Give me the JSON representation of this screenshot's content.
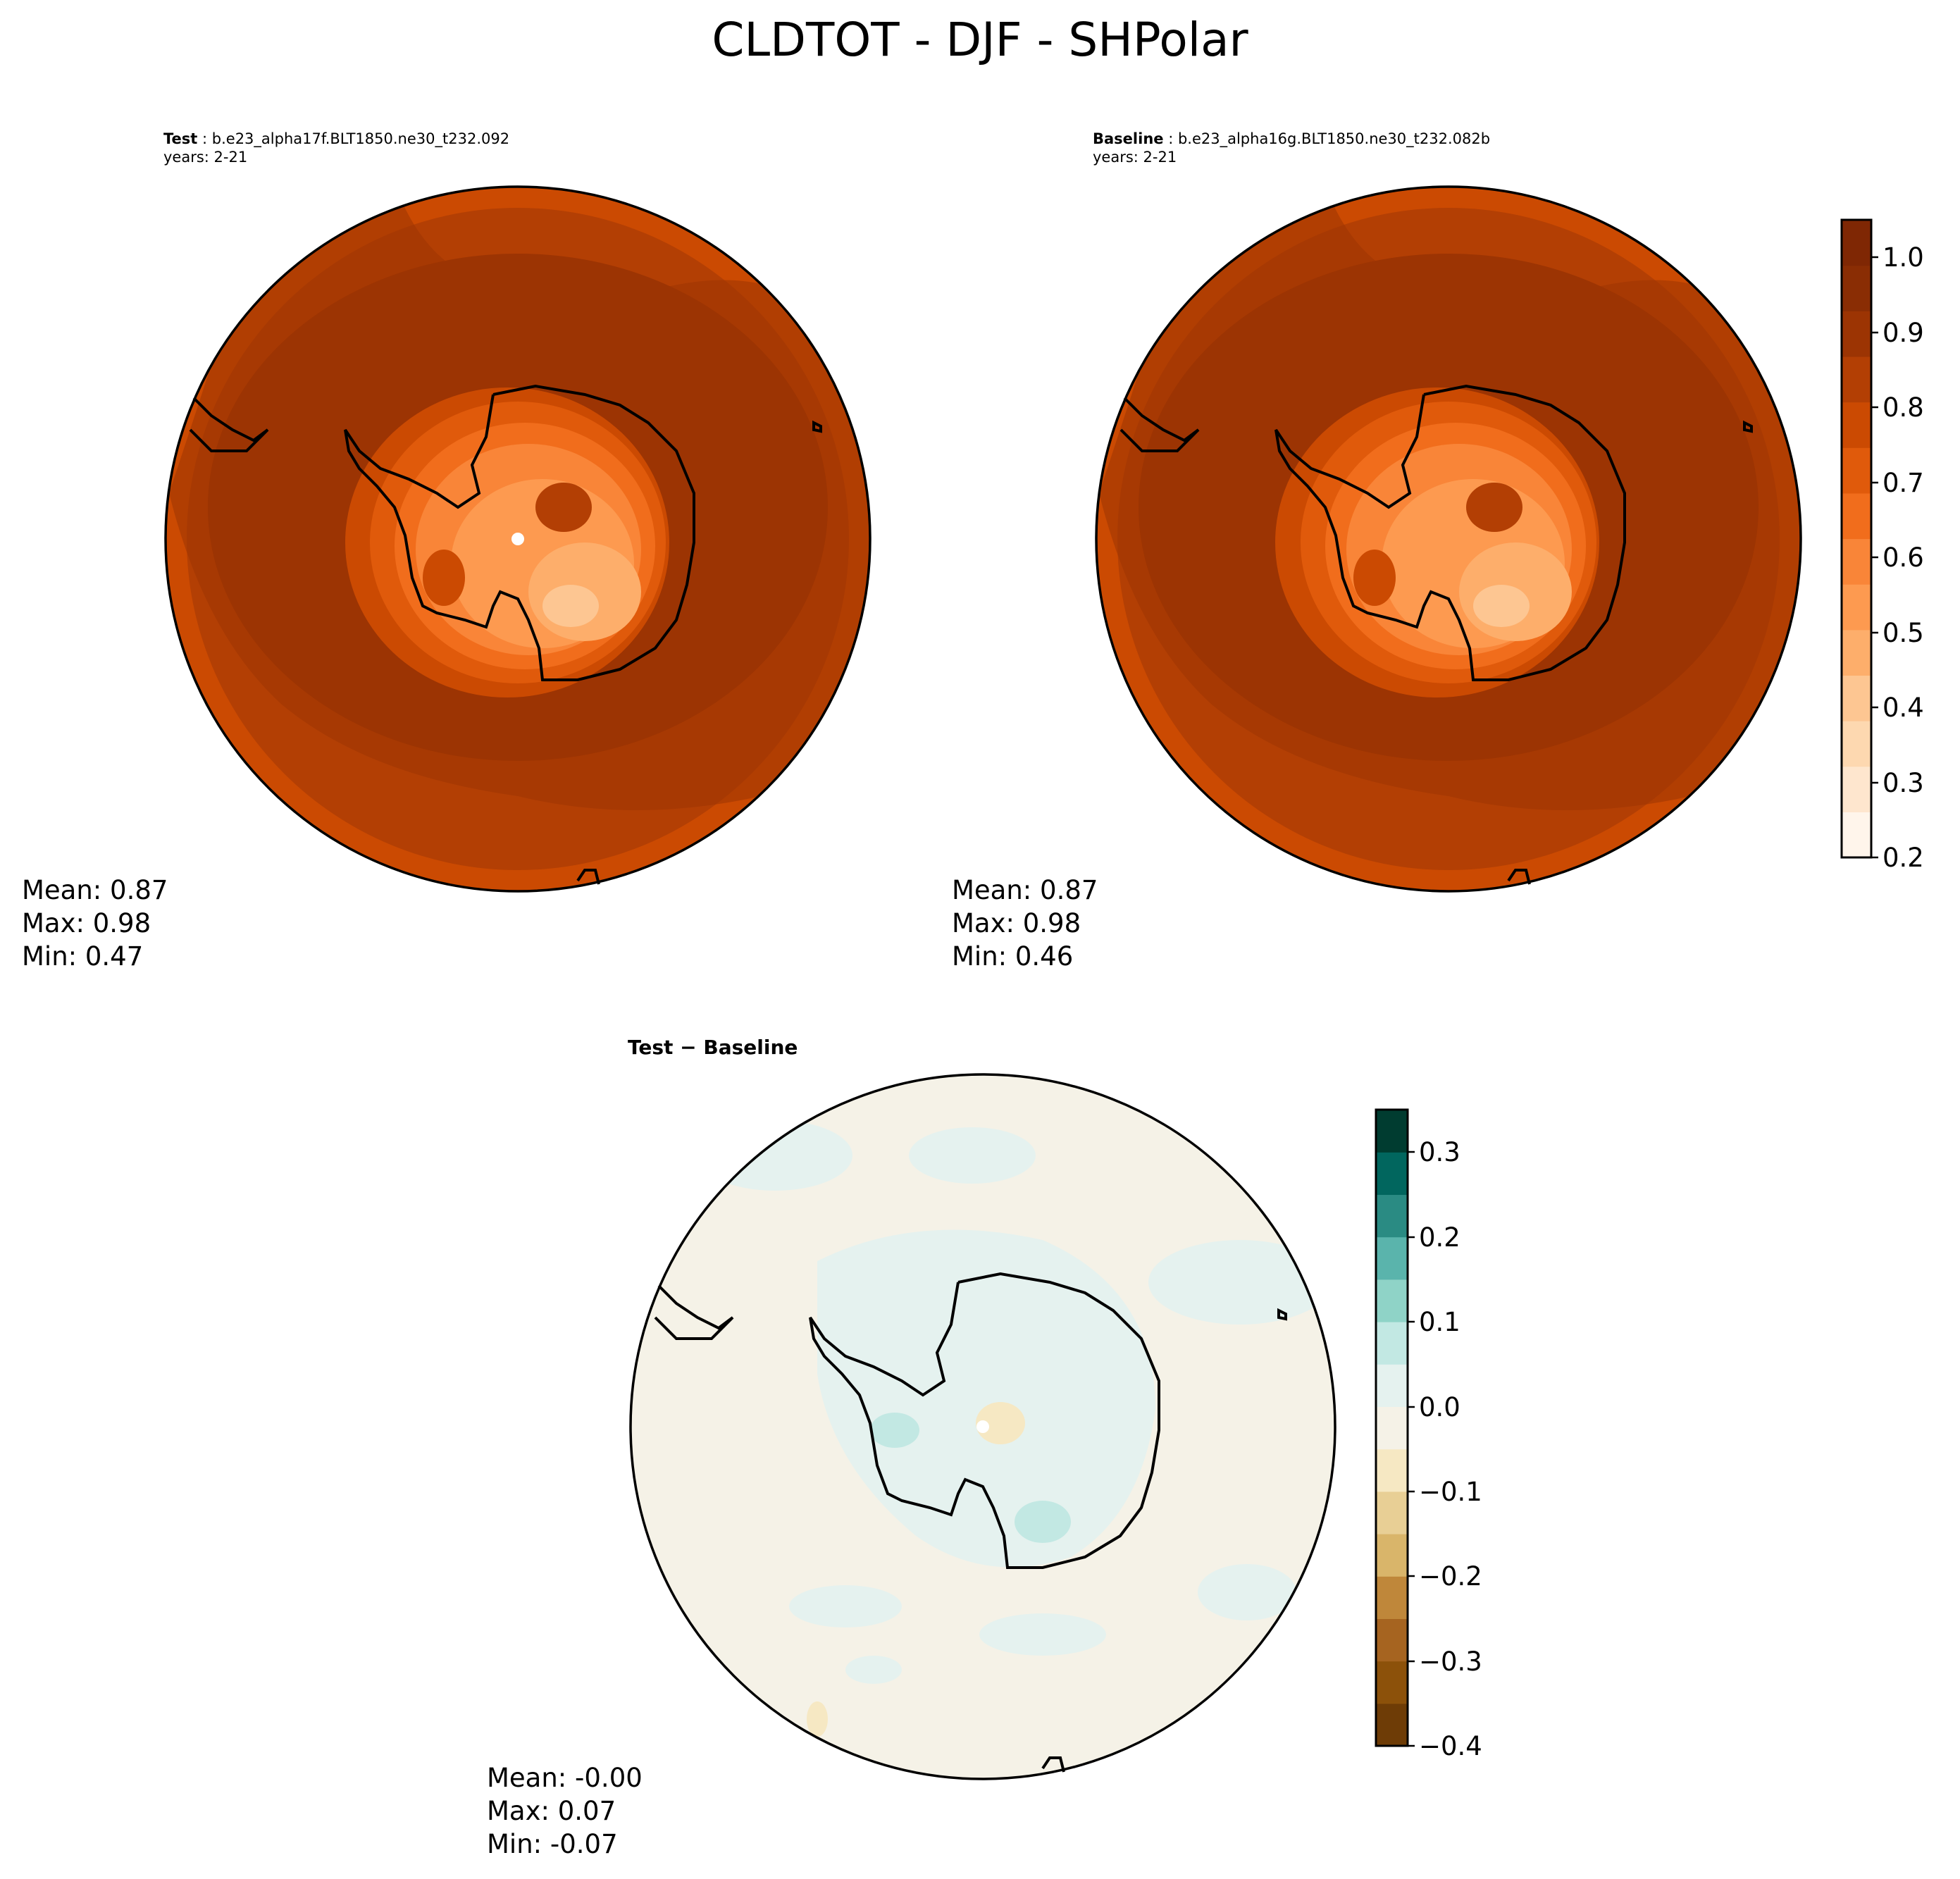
{
  "figure": {
    "title": "CLDTOT - DJF - SHPolar"
  },
  "test_panel": {
    "label": "Test",
    "case": "b.e23_alpha17f.BLT1850.ne30_t232.092",
    "years": "years: 2-21",
    "mean": "Mean:  0.87",
    "max": "Max:  0.98",
    "min": "Min:  0.47"
  },
  "baseline_panel": {
    "label": "Baseline",
    "case": "b.e23_alpha16g.BLT1850.ne30_t232.082b",
    "years": "years: 2-21",
    "mean": "Mean:  0.87",
    "max": "Max:  0.98",
    "min": "Min:  0.46"
  },
  "diff_panel": {
    "title": "Test − Baseline",
    "mean": "Mean: -0.00",
    "max": "Max:  0.07",
    "min": "Min: -0.07"
  },
  "colorbar_main": {
    "ticks": [
      "0.2",
      "0.3",
      "0.4",
      "0.5",
      "0.6",
      "0.7",
      "0.8",
      "0.9",
      "1.0"
    ],
    "levels": [
      0.2,
      1.05
    ],
    "colors": [
      "#fff5eb",
      "#fee6ce",
      "#fdd8b0",
      "#fdc692",
      "#fdae6b",
      "#fd9a50",
      "#f98538",
      "#f16d1c",
      "#e05a0b",
      "#cb4a02",
      "#b33f04",
      "#9c3403",
      "#8a2d04",
      "#7f2704"
    ]
  },
  "colorbar_diff": {
    "ticks": [
      "0.3",
      "0.2",
      "0.1",
      "0.0",
      "−0.1",
      "−0.2",
      "−0.3",
      "−0.4"
    ],
    "levels": [
      -0.4,
      0.35
    ],
    "colors": [
      "#003c30",
      "#01665e",
      "#2a8b83",
      "#5ab4ac",
      "#8fd3c7",
      "#c2e8e3",
      "#e5f2ef",
      "#f5f2e7",
      "#f6e8c3",
      "#e8cf95",
      "#d9b56a",
      "#bf873a",
      "#a66420",
      "#8c510a",
      "#6e3c06"
    ]
  }
}
